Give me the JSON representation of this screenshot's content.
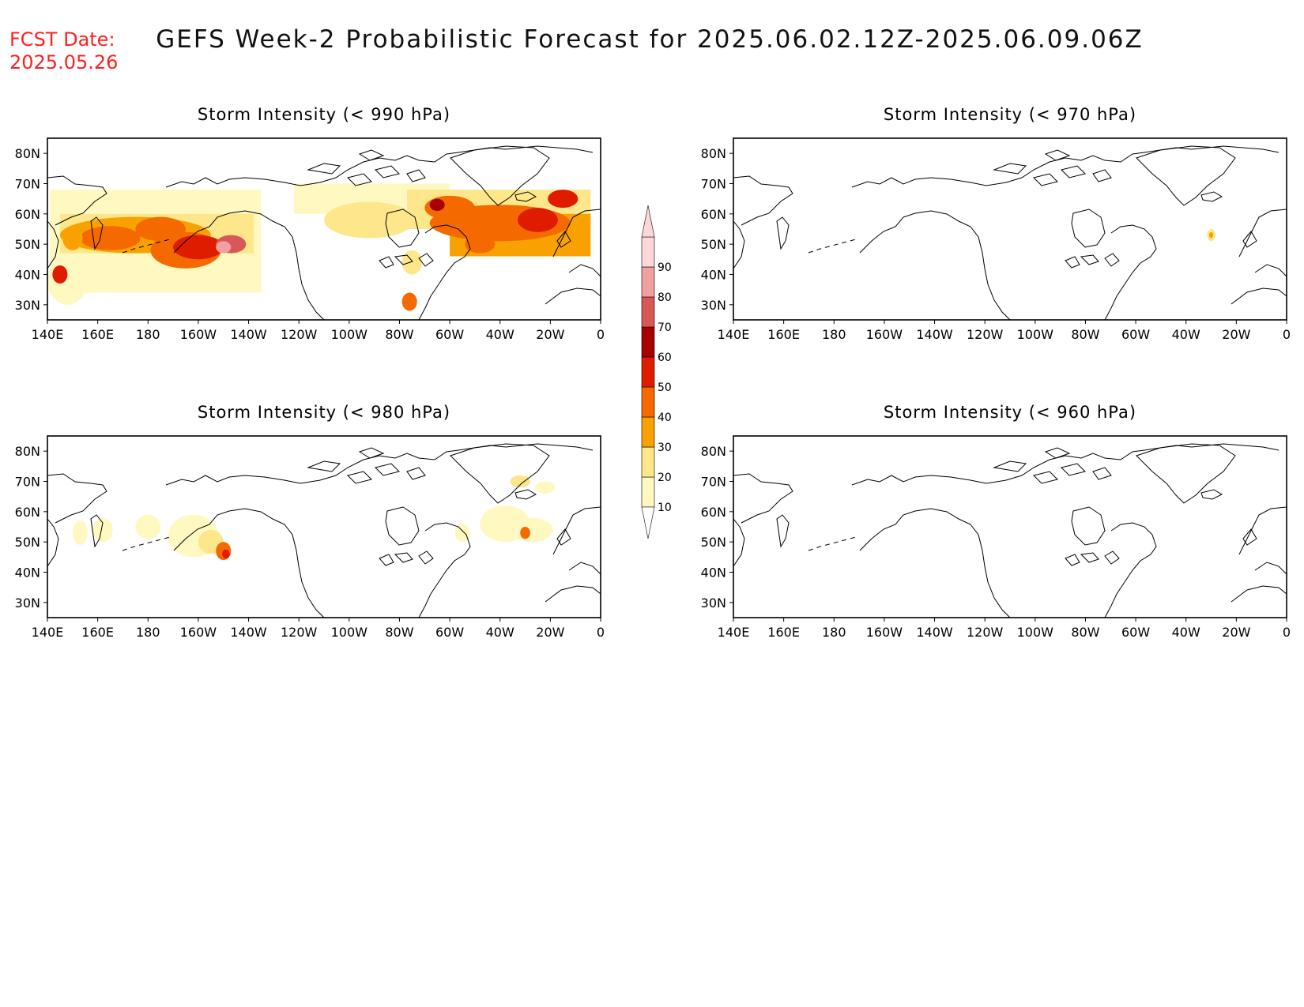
{
  "header": {
    "fcst_label": "FCST Date:",
    "fcst_date": "2025.05.26",
    "title": "GEFS Week-2 Probabilistic Forecast for 2025.06.02.12Z-2025.06.09.06Z",
    "date_color": "#ff2020"
  },
  "axes": {
    "lon_ticks": [
      "140E",
      "160E",
      "180",
      "160W",
      "140W",
      "120W",
      "100W",
      "80W",
      "60W",
      "40W",
      "20W",
      "0"
    ],
    "lat_ticks": [
      "80N",
      "70N",
      "60N",
      "50N",
      "40N",
      "30N"
    ],
    "lon_range": [
      140,
      360
    ],
    "lat_range": [
      25,
      85
    ]
  },
  "panels": [
    {
      "title": "Storm Intensity (< 990 hPa)",
      "threshold_hpa": 990,
      "activity": "widespread"
    },
    {
      "title": "Storm Intensity (< 970 hPa)",
      "threshold_hpa": 970,
      "activity": "single spot near 30W 53N"
    },
    {
      "title": "Storm Intensity (< 980 hPa)",
      "threshold_hpa": 980,
      "activity": "scattered"
    },
    {
      "title": "Storm Intensity (< 960 hPa)",
      "threshold_hpa": 960,
      "activity": "none"
    }
  ],
  "colorbar": {
    "levels": [
      "10",
      "20",
      "30",
      "40",
      "50",
      "60",
      "70",
      "80",
      "90"
    ],
    "colors": [
      "#fff8c0",
      "#fde78a",
      "#f9a100",
      "#f46a00",
      "#e01c00",
      "#a60000",
      "#d85858",
      "#f0a0a0",
      "#fbd7d7"
    ]
  }
}
